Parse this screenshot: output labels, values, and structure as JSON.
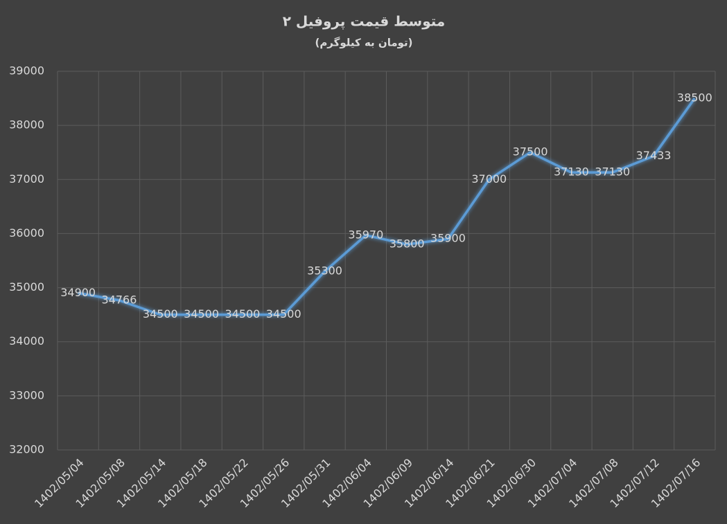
{
  "chart_data": {
    "type": "line",
    "title": "متوسط قیمت پروفیل ۲",
    "subtitle": "(تومان به کیلوگرم)",
    "categories": [
      "1402/05/04",
      "1402/05/08",
      "1402/05/14",
      "1402/05/18",
      "1402/05/22",
      "1402/05/26",
      "1402/05/31",
      "1402/06/04",
      "1402/06/09",
      "1402/06/14",
      "1402/06/21",
      "1402/06/30",
      "1402/07/04",
      "1402/07/08",
      "1402/07/12",
      "1402/07/16"
    ],
    "values": [
      34900,
      34766,
      34500,
      34500,
      34500,
      34500,
      35300,
      35970,
      35800,
      35900,
      37000,
      37500,
      37130,
      37130,
      37433,
      38500
    ],
    "color": "#5b9bd5",
    "ylim": [
      32000,
      39000
    ],
    "yticks": [
      32000,
      33000,
      34000,
      35000,
      36000,
      37000,
      38000,
      39000
    ],
    "grid": true
  }
}
